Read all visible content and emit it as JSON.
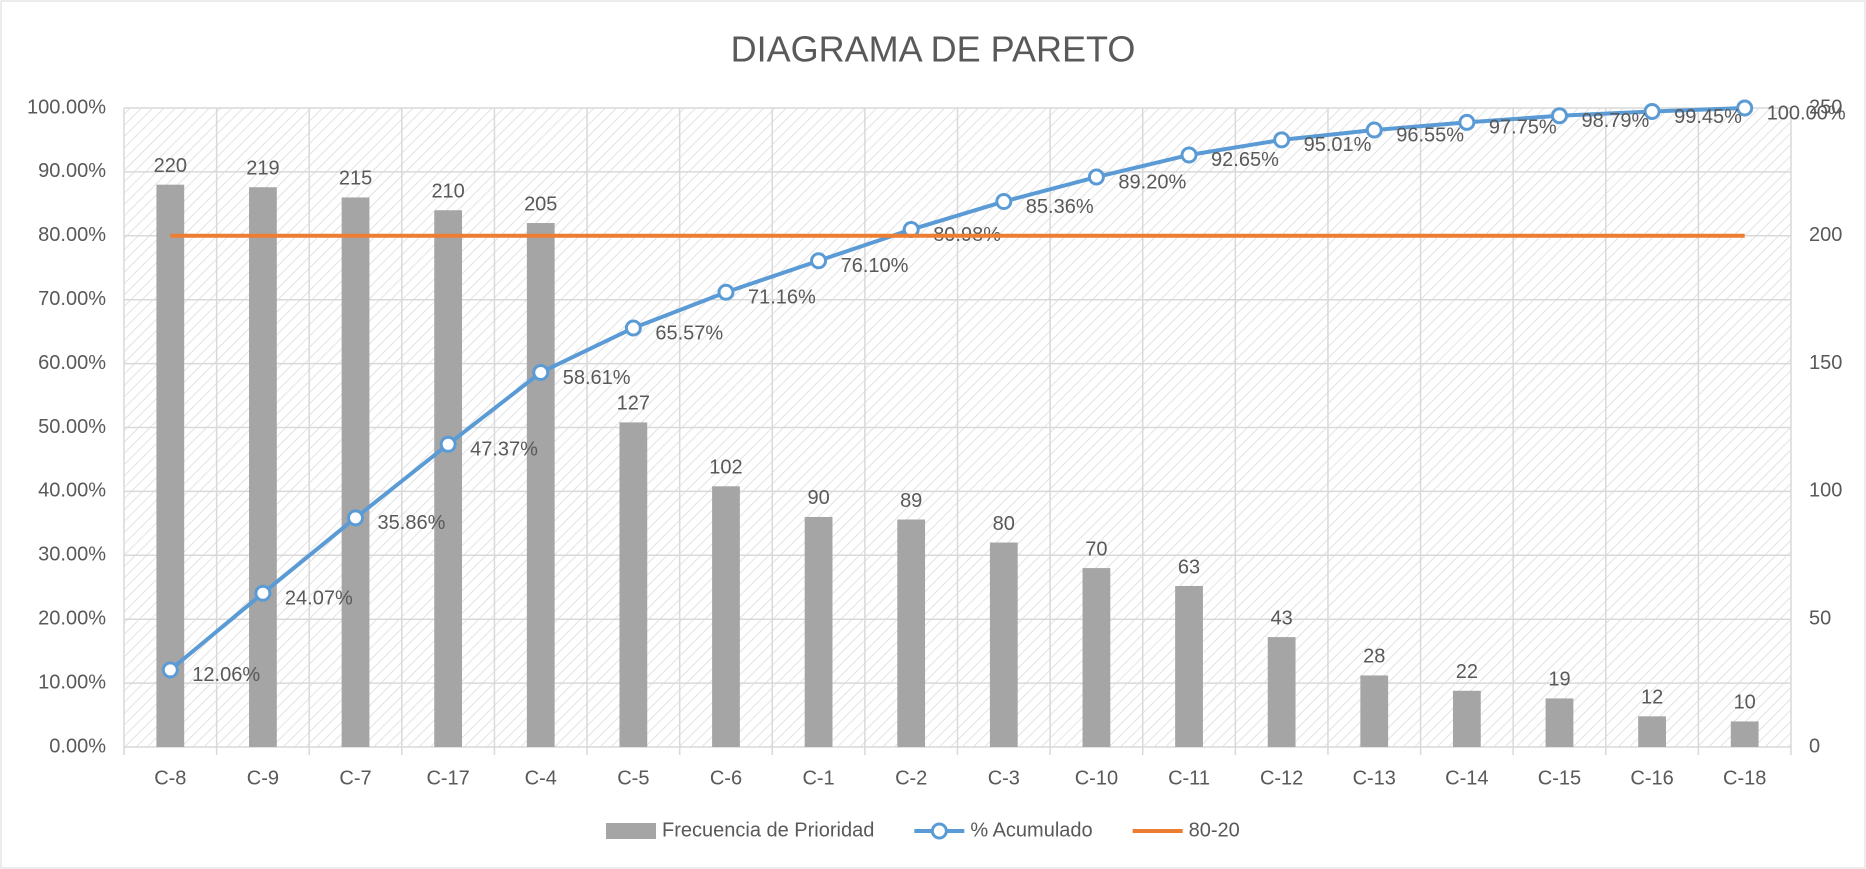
{
  "chart_data": {
    "type": "combo",
    "title": "DIAGRAMA DE PARETO",
    "categories": [
      "C-8",
      "C-9",
      "C-7",
      "C-17",
      "C-4",
      "C-5",
      "C-6",
      "C-1",
      "C-2",
      "C-3",
      "C-10",
      "C-11",
      "C-12",
      "C-13",
      "C-14",
      "C-15",
      "C-16",
      "C-18"
    ],
    "ylim": [
      0,
      100
    ],
    "yticks": [
      {
        "value": 0,
        "label": "0.00%"
      },
      {
        "value": 10,
        "label": "10.00%"
      },
      {
        "value": 20,
        "label": "20.00%"
      },
      {
        "value": 30,
        "label": "30.00%"
      },
      {
        "value": 40,
        "label": "40.00%"
      },
      {
        "value": 50,
        "label": "50.00%"
      },
      {
        "value": 60,
        "label": "60.00%"
      },
      {
        "value": 70,
        "label": "70.00%"
      },
      {
        "value": 80,
        "label": "80.00%"
      },
      {
        "value": 90,
        "label": "90.00%"
      },
      {
        "value": 100,
        "label": "100.00%"
      }
    ],
    "y2lim": [
      0,
      250
    ],
    "y2ticks": [
      0,
      50,
      100,
      150,
      200,
      250
    ],
    "grid": true,
    "legend": "bottom",
    "series": [
      {
        "name": "Frecuencia de Prioridad",
        "type": "bar",
        "axis": "y2",
        "color": "#a5a5a5",
        "values": [
          220,
          219,
          215,
          210,
          205,
          127,
          102,
          90,
          89,
          80,
          70,
          63,
          43,
          28,
          22,
          19,
          12,
          10
        ]
      },
      {
        "name": "% Acumulado",
        "type": "line",
        "axis": "y",
        "color": "#5b9bd5",
        "marker": "circle",
        "values": [
          12.06,
          24.07,
          35.86,
          47.37,
          58.61,
          65.57,
          71.16,
          76.1,
          80.98,
          85.36,
          89.2,
          92.65,
          95.01,
          96.55,
          97.75,
          98.79,
          99.45,
          100.0
        ],
        "value_labels": [
          "12.06%",
          "24.07%",
          "35.86%",
          "47.37%",
          "58.61%",
          "65.57%",
          "71.16%",
          "76.10%",
          "80.98%",
          "85.36%",
          "89.20%",
          "92.65%",
          "95.01%",
          "96.55%",
          "97.75%",
          "98.79%",
          "99.45%",
          "100.00%"
        ]
      },
      {
        "name": "80-20",
        "type": "line",
        "axis": "y",
        "color": "#ed7d31",
        "values": [
          80,
          80,
          80,
          80,
          80,
          80,
          80,
          80,
          80,
          80,
          80,
          80,
          80,
          80,
          80,
          80,
          80,
          80
        ]
      }
    ]
  }
}
